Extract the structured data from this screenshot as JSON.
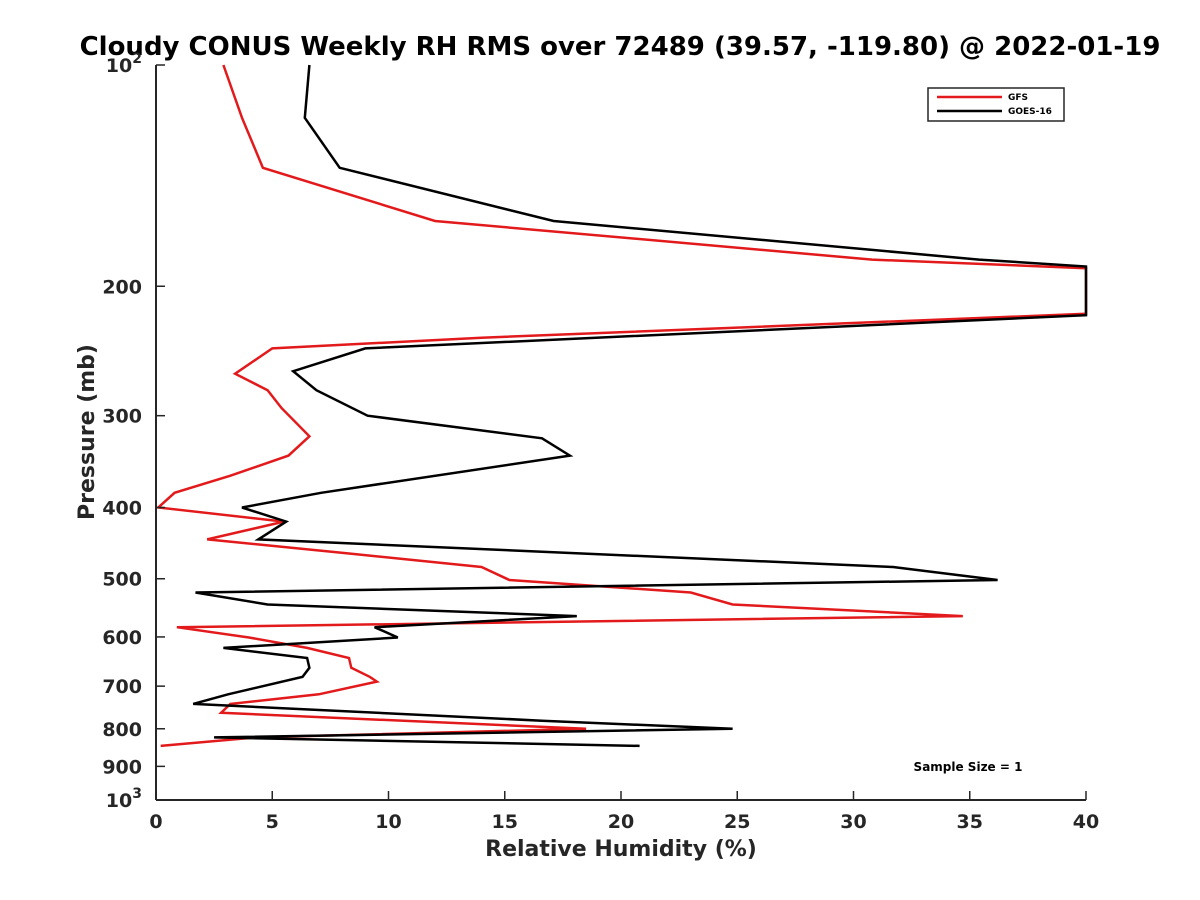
{
  "chart_data": {
    "type": "line",
    "title": "Cloudy CONUS Weekly RH RMS over 72489 (39.57, -119.80) @ 2022-01-19",
    "xlabel": "Relative Humidity (%)",
    "ylabel": "Pressure (mb)",
    "xlim": [
      0,
      40
    ],
    "ylim": [
      100,
      1000
    ],
    "y_scale": "log",
    "y_reversed": true,
    "grid": false,
    "legend_position": "top-right",
    "x_ticks": [
      {
        "value": 0,
        "label": "0"
      },
      {
        "value": 5,
        "label": "5"
      },
      {
        "value": 10,
        "label": "10"
      },
      {
        "value": 15,
        "label": "15"
      },
      {
        "value": 20,
        "label": "20"
      },
      {
        "value": 25,
        "label": "25"
      },
      {
        "value": 30,
        "label": "30"
      },
      {
        "value": 35,
        "label": "35"
      },
      {
        "value": 40,
        "label": "40"
      }
    ],
    "y_ticks": [
      {
        "value": 100,
        "base": "10",
        "exp": "2"
      },
      {
        "value": 200,
        "label": "200"
      },
      {
        "value": 300,
        "label": "300"
      },
      {
        "value": 400,
        "label": "400"
      },
      {
        "value": 500,
        "label": "500"
      },
      {
        "value": 600,
        "label": "600"
      },
      {
        "value": 700,
        "label": "700"
      },
      {
        "value": 800,
        "label": "800"
      },
      {
        "value": 900,
        "label": "900"
      },
      {
        "value": 1000,
        "base": "10",
        "exp": "3"
      }
    ],
    "annotation": "Sample Size = 1",
    "series": [
      {
        "name": "GFS",
        "color": "#e31a1c",
        "points": [
          [
            2.9,
            100
          ],
          [
            3.7,
            118
          ],
          [
            4.6,
            138
          ],
          [
            12.0,
            163
          ],
          [
            30.8,
            184
          ],
          [
            40.0,
            189
          ],
          [
            40.0,
            218
          ],
          [
            14.0,
            235
          ],
          [
            5.0,
            243
          ],
          [
            3.4,
            263
          ],
          [
            4.8,
            277
          ],
          [
            5.4,
            293
          ],
          [
            6.6,
            320
          ],
          [
            5.7,
            340
          ],
          [
            3.2,
            362
          ],
          [
            0.8,
            382
          ],
          [
            0.1,
            400
          ],
          [
            5.5,
            418
          ],
          [
            2.2,
            442
          ],
          [
            8.3,
            462
          ],
          [
            14.0,
            482
          ],
          [
            15.2,
            502
          ],
          [
            23.0,
            522
          ],
          [
            24.8,
            542
          ],
          [
            34.7,
            562
          ],
          [
            0.9,
            582
          ],
          [
            4.0,
            601
          ],
          [
            6.5,
            621
          ],
          [
            8.3,
            641
          ],
          [
            8.4,
            661
          ],
          [
            9.2,
            680
          ],
          [
            9.5,
            690
          ],
          [
            7.0,
            718
          ],
          [
            3.2,
            740
          ],
          [
            2.8,
            761
          ],
          [
            18.5,
            800
          ],
          [
            4.3,
            822
          ],
          [
            0.2,
            844
          ]
        ]
      },
      {
        "name": "GOES-16",
        "color": "#000000",
        "points": [
          [
            6.6,
            100
          ],
          [
            6.4,
            118
          ],
          [
            7.9,
            138
          ],
          [
            17.1,
            163
          ],
          [
            35.4,
            184
          ],
          [
            40.0,
            188
          ],
          [
            40.0,
            219
          ],
          [
            9.0,
            243
          ],
          [
            5.9,
            261
          ],
          [
            6.9,
            277
          ],
          [
            9.1,
            300
          ],
          [
            16.6,
            322
          ],
          [
            17.8,
            340
          ],
          [
            7.1,
            382
          ],
          [
            3.7,
            400
          ],
          [
            5.6,
            418
          ],
          [
            4.4,
            442
          ],
          [
            31.7,
            482
          ],
          [
            36.2,
            502
          ],
          [
            1.7,
            522
          ],
          [
            4.8,
            542
          ],
          [
            18.1,
            562
          ],
          [
            9.4,
            582
          ],
          [
            10.4,
            601
          ],
          [
            2.9,
            621
          ],
          [
            6.5,
            641
          ],
          [
            6.6,
            661
          ],
          [
            6.3,
            680
          ],
          [
            3.1,
            718
          ],
          [
            1.6,
            740
          ],
          [
            16.6,
            780
          ],
          [
            24.8,
            800
          ],
          [
            2.5,
            822
          ],
          [
            20.8,
            844
          ]
        ]
      }
    ]
  }
}
